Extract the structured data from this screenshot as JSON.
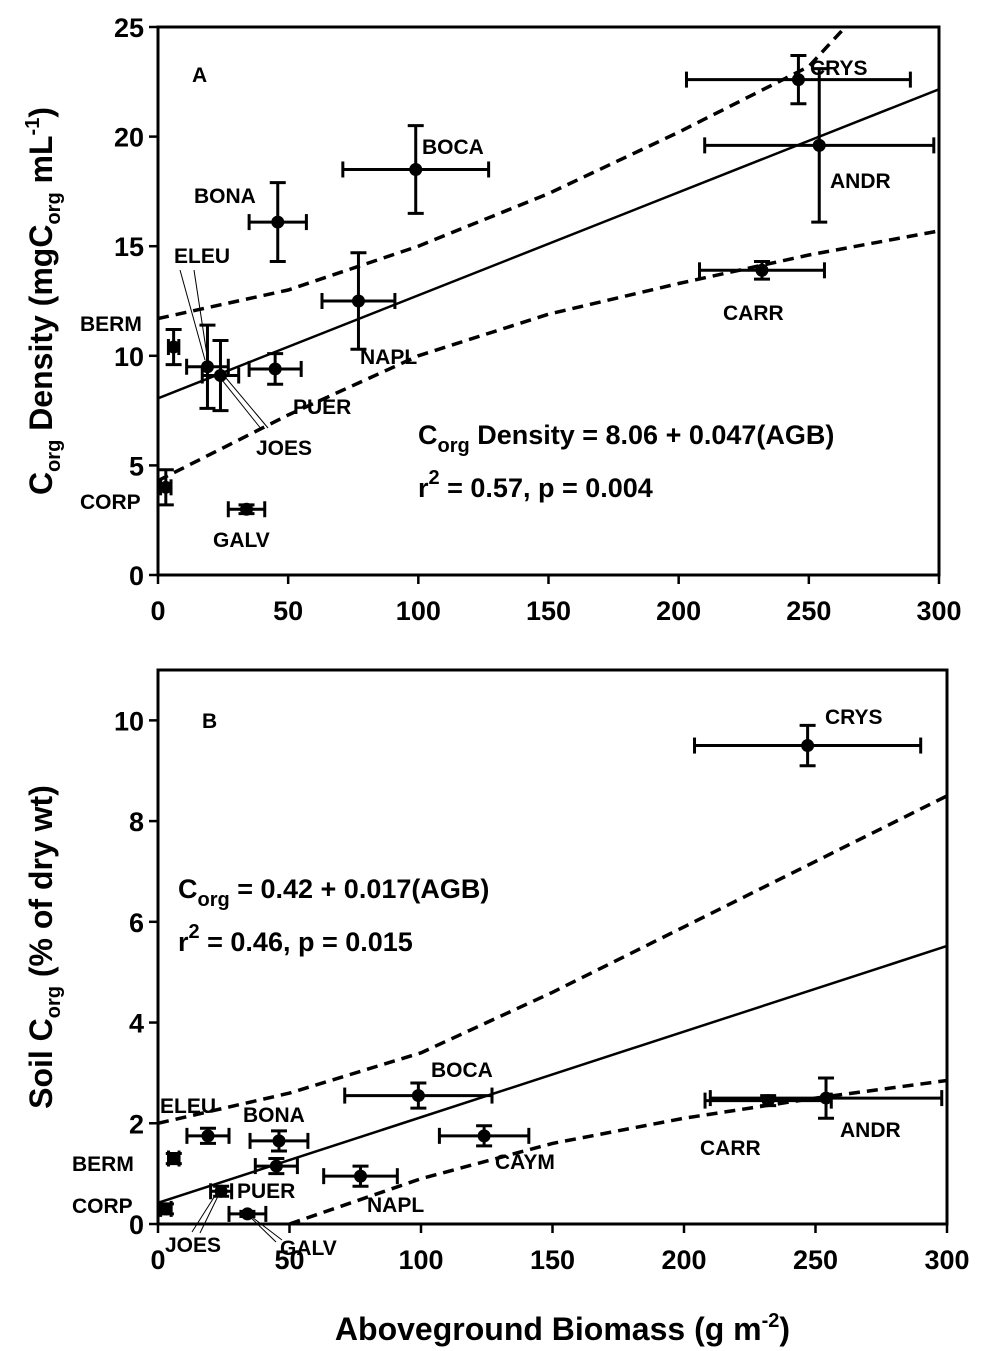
{
  "chart_data": [
    {
      "type": "scatter",
      "panel_label": "A",
      "title": "",
      "xlabel": "",
      "ylabel": {
        "prefix": "C",
        "sub": "org",
        "mid": " Density (mgC",
        "sub2": "org",
        "mid2": " mL",
        "sup": "-1",
        "suffix": ")"
      },
      "xlim": [
        0,
        300
      ],
      "ylim": [
        0,
        25
      ],
      "x_ticks": [
        "0",
        "50",
        "100",
        "150",
        "200",
        "250",
        "300"
      ],
      "y_ticks": [
        "0",
        "5",
        "10",
        "15",
        "20",
        "25"
      ],
      "equation": {
        "prefix": "C",
        "sub": "org",
        "text": " Density = 8.06 + 0.047(AGB)"
      },
      "stats": {
        "prefix": "r",
        "sup": "2",
        "text": " = 0.57, p = 0.004"
      },
      "regression": {
        "intercept": 8.06,
        "slope": 0.047
      },
      "confidence_band_upper": [
        [
          0,
          11.7
        ],
        [
          50,
          13.0
        ],
        [
          100,
          15.0
        ],
        [
          150,
          17.4
        ],
        [
          200,
          20.2
        ],
        [
          250,
          23.2
        ],
        [
          264,
          25.0
        ]
      ],
      "confidence_band_lower": [
        [
          0,
          4.3
        ],
        [
          50,
          7.3
        ],
        [
          100,
          10.0
        ],
        [
          150,
          11.9
        ],
        [
          200,
          13.3
        ],
        [
          250,
          14.6
        ],
        [
          300,
          15.7
        ]
      ],
      "points": [
        {
          "label": "CRYS",
          "x": 246,
          "y": 22.6,
          "xerr": 43,
          "yerr": 1.1
        },
        {
          "label": "ANDR",
          "x": 254,
          "y": 19.6,
          "xerr": 44,
          "yerr": 3.5
        },
        {
          "label": "BOCA",
          "x": 99,
          "y": 18.5,
          "xerr": 28,
          "yerr": 2.0
        },
        {
          "label": "BONA",
          "x": 46,
          "y": 16.1,
          "xerr": 11,
          "yerr": 1.8
        },
        {
          "label": "CARR",
          "x": 232,
          "y": 13.9,
          "xerr": 24,
          "yerr": 0.4
        },
        {
          "label": "NAPL",
          "x": 77,
          "y": 12.5,
          "xerr": 14,
          "yerr": 2.2
        },
        {
          "label": "BERM",
          "x": 6,
          "y": 10.4,
          "xerr": 2,
          "yerr": 0.8
        },
        {
          "label": "ELEU",
          "x": 19,
          "y": 9.5,
          "xerr": 8,
          "yerr": 1.9
        },
        {
          "label": "JOES",
          "x": 24,
          "y": 9.1,
          "xerr": 7,
          "yerr": 1.6
        },
        {
          "label": "PUER",
          "x": 45,
          "y": 9.4,
          "xerr": 10,
          "yerr": 0.7
        },
        {
          "label": "CORP",
          "x": 3,
          "y": 4.0,
          "xerr": 2,
          "yerr": 0.8
        },
        {
          "label": "GALV",
          "x": 34,
          "y": 3.0,
          "xerr": 7,
          "yerr": 0.2
        }
      ]
    },
    {
      "type": "scatter",
      "panel_label": "B",
      "title": "",
      "xlabel": {
        "text": "Aboveground Biomass (g m",
        "sup": "-2",
        "suffix": ")"
      },
      "ylabel": {
        "prefix": "Soil C",
        "sub": "org",
        "suffix": " (% of dry wt)"
      },
      "xlim": [
        0,
        300
      ],
      "ylim": [
        0,
        11
      ],
      "x_ticks": [
        "0",
        "50",
        "100",
        "150",
        "200",
        "250",
        "300"
      ],
      "y_ticks": [
        "0",
        "2",
        "4",
        "6",
        "8",
        "10"
      ],
      "equation": {
        "prefix": "C",
        "sub": "org",
        "text": " = 0.42 + 0.017(AGB)"
      },
      "stats": {
        "prefix": "r",
        "sup": "2",
        "text": " = 0.46, p = 0.015"
      },
      "regression": {
        "intercept": 0.42,
        "slope": 0.017
      },
      "confidence_band_upper": [
        [
          0,
          2.0
        ],
        [
          50,
          2.6
        ],
        [
          100,
          3.4
        ],
        [
          150,
          4.6
        ],
        [
          200,
          5.9
        ],
        [
          250,
          7.2
        ],
        [
          300,
          8.5
        ]
      ],
      "confidence_band_lower": [
        [
          50,
          0.0
        ],
        [
          100,
          0.9
        ],
        [
          150,
          1.6
        ],
        [
          200,
          2.1
        ],
        [
          250,
          2.5
        ],
        [
          300,
          2.85
        ]
      ],
      "points": [
        {
          "label": "CRYS",
          "x": 247,
          "y": 9.5,
          "xerr": 43,
          "yerr": 0.4
        },
        {
          "label": "BOCA",
          "x": 99,
          "y": 2.55,
          "xerr": 28,
          "yerr": 0.25
        },
        {
          "label": "ANDR",
          "x": 254,
          "y": 2.5,
          "xerr": 44,
          "yerr": 0.4
        },
        {
          "label": "CARR",
          "x": 232,
          "y": 2.45,
          "xerr": 24,
          "yerr": 0.1
        },
        {
          "label": "CAYM",
          "x": 124,
          "y": 1.75,
          "xerr": 17,
          "yerr": 0.2
        },
        {
          "label": "ELEU",
          "x": 19,
          "y": 1.75,
          "xerr": 8,
          "yerr": 0.15
        },
        {
          "label": "BONA",
          "x": 46,
          "y": 1.65,
          "xerr": 11,
          "yerr": 0.2
        },
        {
          "label": "BERM",
          "x": 6,
          "y": 1.3,
          "xerr": 2,
          "yerr": 0.1
        },
        {
          "label": "PUER",
          "x": 45,
          "y": 1.15,
          "xerr": 8,
          "yerr": 0.15
        },
        {
          "label": "NAPL",
          "x": 77,
          "y": 0.95,
          "xerr": 14,
          "yerr": 0.2
        },
        {
          "label": "JOES",
          "x": 24,
          "y": 0.65,
          "xerr": 4,
          "yerr": 0.1
        },
        {
          "label": "CORP",
          "x": 3,
          "y": 0.3,
          "xerr": 2,
          "yerr": 0.1
        },
        {
          "label": "GALV",
          "x": 34,
          "y": 0.2,
          "xerr": 7,
          "yerr": 0.05
        }
      ]
    }
  ]
}
